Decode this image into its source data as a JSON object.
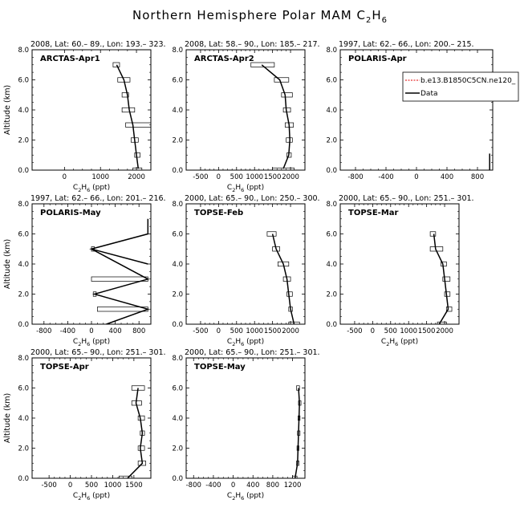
{
  "figure": {
    "title_main": "Northern Hemisphere Polar MAM C",
    "title_sub": "2",
    "title_mid": "H",
    "title_sub2": "6"
  },
  "chart_data": [
    {
      "type": "line",
      "header": "2008, Lat:  60.– 89., Lon: 193.– 323.",
      "label": "ARCTAS-Apr1",
      "xlabel_main": "C",
      "xlabel_sub1": "2",
      "xlabel_mid": "H",
      "xlabel_sub2": "6",
      "xlabel_tail": " (ppt)",
      "ylabel": "Altitude (km)",
      "xlim": [
        -900,
        2400
      ],
      "ylim": [
        0,
        8
      ],
      "xticks": [
        {
          "v": 0,
          "t": "0"
        },
        {
          "v": 1000,
          "t": "1000"
        },
        {
          "v": 2000,
          "t": "2000"
        }
      ],
      "yticks": [
        {
          "v": 0,
          "t": "0.0"
        },
        {
          "v": 2,
          "t": "2.0"
        },
        {
          "v": 4,
          "t": "4.0"
        },
        {
          "v": 6,
          "t": "6.0"
        },
        {
          "v": 8,
          "t": "8.0"
        }
      ],
      "series": [
        {
          "x": [
            2050,
            2000,
            1950,
            1900,
            1800,
            1750,
            1650,
            1450
          ],
          "y": [
            0.1,
            1.0,
            2.0,
            3.0,
            4.0,
            5.0,
            6.0,
            7.0
          ]
        }
      ],
      "boxes": [
        {
          "y": 7.0,
          "x1": 1350,
          "x2": 1530
        },
        {
          "y": 6.0,
          "x1": 1480,
          "x2": 1820
        },
        {
          "y": 5.0,
          "x1": 1600,
          "x2": 1780
        },
        {
          "y": 4.0,
          "x1": 1600,
          "x2": 1950
        },
        {
          "y": 3.0,
          "x1": 1700,
          "x2": 2450
        },
        {
          "y": 2.0,
          "x1": 1850,
          "x2": 2050
        },
        {
          "y": 1.0,
          "x1": 1950,
          "x2": 2100
        },
        {
          "y": 0.0,
          "x1": 1900,
          "x2": 2150
        }
      ]
    },
    {
      "type": "line",
      "header": "2008, Lat:  58.– 90., Lon: 185.– 217.",
      "label": "ARCTAS-Apr2",
      "xlabel_main": "C",
      "xlabel_sub1": "2",
      "xlabel_mid": "H",
      "xlabel_sub2": "6",
      "xlabel_tail": " (ppt)",
      "ylabel": "",
      "xlim": [
        -900,
        2400
      ],
      "ylim": [
        0,
        8
      ],
      "xticks": [
        {
          "v": -500,
          "t": "-500"
        },
        {
          "v": 0,
          "t": "0"
        },
        {
          "v": 500,
          "t": "500"
        },
        {
          "v": 1000,
          "t": "1000"
        },
        {
          "v": 1500,
          "t": "1500"
        },
        {
          "v": 2000,
          "t": "2000"
        }
      ],
      "yticks": [
        {
          "v": 0,
          "t": "0.0"
        },
        {
          "v": 2,
          "t": "2.0"
        },
        {
          "v": 4,
          "t": "4.0"
        },
        {
          "v": 6,
          "t": "6.0"
        },
        {
          "v": 8,
          "t": "8.0"
        }
      ],
      "series": [
        {
          "x": [
            1800,
            1950,
            1980,
            1960,
            1880,
            1850,
            1700,
            1200
          ],
          "y": [
            0.1,
            1.0,
            2.0,
            3.0,
            4.0,
            5.0,
            6.0,
            7.0
          ]
        }
      ],
      "boxes": [
        {
          "y": 7.0,
          "x1": 900,
          "x2": 1550
        },
        {
          "y": 6.0,
          "x1": 1550,
          "x2": 1950
        },
        {
          "y": 5.0,
          "x1": 1750,
          "x2": 2050
        },
        {
          "y": 4.0,
          "x1": 1800,
          "x2": 2000
        },
        {
          "y": 3.0,
          "x1": 1850,
          "x2": 2080
        },
        {
          "y": 2.0,
          "x1": 1880,
          "x2": 2050
        },
        {
          "y": 1.0,
          "x1": 1900,
          "x2": 2020
        },
        {
          "y": 0.0,
          "x1": 1500,
          "x2": 2100
        }
      ]
    },
    {
      "type": "line",
      "header": "1997, Lat: 62.– 66., Lon: 200.– 215.",
      "label": "POLARIS-Apr",
      "xlabel_main": "",
      "xlabel_sub1": "",
      "xlabel_mid": "",
      "xlabel_sub2": "",
      "xlabel_tail": "",
      "ylabel": "",
      "xlim": [
        -1000,
        1000
      ],
      "ylim": [
        0,
        8
      ],
      "xticks": [
        {
          "v": -800,
          "t": "-800"
        },
        {
          "v": -400,
          "t": "-400"
        },
        {
          "v": 0,
          "t": "0"
        },
        {
          "v": 400,
          "t": "400"
        },
        {
          "v": 800,
          "t": "800"
        }
      ],
      "yticks": [
        {
          "v": 0,
          "t": "0.0"
        },
        {
          "v": 2,
          "t": "2.0"
        },
        {
          "v": 4,
          "t": "4.0"
        },
        {
          "v": 6,
          "t": "6.0"
        },
        {
          "v": 8,
          "t": "8.0"
        }
      ],
      "series": [
        {
          "x": [
            960,
            960
          ],
          "y": [
            0.0,
            1.1
          ]
        }
      ],
      "boxes": [],
      "legend": {
        "placement": "top-right",
        "entries": [
          {
            "name": "b.e13.B1850C5CN.ne120_",
            "color": "#e00000",
            "style": "dashed"
          },
          {
            "name": "Data",
            "color": "#000000",
            "style": "solid"
          }
        ]
      }
    },
    {
      "type": "line",
      "header": "1997, Lat: 62.– 66., Lon: 201.– 216.",
      "label": "POLARIS-May",
      "xlabel_main": "C",
      "xlabel_sub1": "2",
      "xlabel_mid": "H",
      "xlabel_sub2": "6",
      "xlabel_tail": " (ppt)",
      "ylabel": "Altitude (km)",
      "xlim": [
        -1000,
        1000
      ],
      "ylim": [
        0,
        8
      ],
      "xticks": [
        {
          "v": -800,
          "t": "-800"
        },
        {
          "v": -400,
          "t": "-400"
        },
        {
          "v": 0,
          "t": "0"
        },
        {
          "v": 400,
          "t": "400"
        },
        {
          "v": 800,
          "t": "800"
        }
      ],
      "yticks": [
        {
          "v": 0,
          "t": "0.0"
        },
        {
          "v": 2,
          "t": "2.0"
        },
        {
          "v": 4,
          "t": "4.0"
        },
        {
          "v": 6,
          "t": "6.0"
        },
        {
          "v": 8,
          "t": "8.0"
        }
      ],
      "series": [
        {
          "x": [
            250,
            950,
            50,
            950,
            0,
            950,
            0,
            950,
            950
          ],
          "y": [
            0.0,
            1.0,
            2.0,
            3.0,
            5.0,
            4.0,
            5.0,
            6.0,
            7.0
          ]
        }
      ],
      "boxes": [
        {
          "y": 5.0,
          "x1": 0,
          "x2": 50
        },
        {
          "y": 3.0,
          "x1": 0,
          "x2": 950
        },
        {
          "y": 2.0,
          "x1": 30,
          "x2": 80
        },
        {
          "y": 1.0,
          "x1": 100,
          "x2": 950
        }
      ]
    },
    {
      "type": "line",
      "header": "2000, Lat: 65.– 90., Lon: 250.– 300.",
      "label": "TOPSE-Feb",
      "xlabel_main": "C",
      "xlabel_sub1": "2",
      "xlabel_mid": "H",
      "xlabel_sub2": "6",
      "xlabel_tail": " (ppt)",
      "ylabel": "",
      "xlim": [
        -900,
        2400
      ],
      "ylim": [
        0,
        8
      ],
      "xticks": [
        {
          "v": -500,
          "t": "-500"
        },
        {
          "v": 0,
          "t": "0"
        },
        {
          "v": 500,
          "t": "500"
        },
        {
          "v": 1000,
          "t": "1000"
        },
        {
          "v": 1500,
          "t": "1500"
        },
        {
          "v": 2000,
          "t": "2000"
        }
      ],
      "yticks": [
        {
          "v": 0,
          "t": "0.0"
        },
        {
          "v": 2,
          "t": "2.0"
        },
        {
          "v": 4,
          "t": "4.0"
        },
        {
          "v": 6,
          "t": "6.0"
        },
        {
          "v": 8,
          "t": "8.0"
        }
      ],
      "series": [
        {
          "x": [
            2100,
            2000,
            1950,
            1900,
            1800,
            1600,
            1500
          ],
          "y": [
            0.0,
            1.0,
            2.0,
            3.0,
            4.0,
            5.0,
            6.0
          ]
        }
      ],
      "boxes": [
        {
          "y": 6.0,
          "x1": 1350,
          "x2": 1600
        },
        {
          "y": 5.0,
          "x1": 1500,
          "x2": 1700
        },
        {
          "y": 4.0,
          "x1": 1650,
          "x2": 1950
        },
        {
          "y": 3.0,
          "x1": 1800,
          "x2": 2000
        },
        {
          "y": 2.0,
          "x1": 1900,
          "x2": 2050
        },
        {
          "y": 1.0,
          "x1": 1950,
          "x2": 2050
        },
        {
          "y": 0.0,
          "x1": 1950,
          "x2": 2250
        }
      ]
    },
    {
      "type": "line",
      "header": "2000, Lat: 65.– 90., Lon: 251.– 301.",
      "label": "TOPSE-Mar",
      "xlabel_main": "C",
      "xlabel_sub1": "2",
      "xlabel_mid": "H",
      "xlabel_sub2": "6",
      "xlabel_tail": " (ppt)",
      "ylabel": "",
      "xlim": [
        -900,
        2400
      ],
      "ylim": [
        0,
        8
      ],
      "xticks": [
        {
          "v": -500,
          "t": "-500"
        },
        {
          "v": 0,
          "t": "0"
        },
        {
          "v": 500,
          "t": "500"
        },
        {
          "v": 1000,
          "t": "1000"
        },
        {
          "v": 1500,
          "t": "1500"
        },
        {
          "v": 2000,
          "t": "2000"
        }
      ],
      "yticks": [
        {
          "v": 0,
          "t": "0.0"
        },
        {
          "v": 2,
          "t": "2.0"
        },
        {
          "v": 4,
          "t": "4.0"
        },
        {
          "v": 6,
          "t": "6.0"
        },
        {
          "v": 8,
          "t": "8.0"
        }
      ],
      "series": [
        {
          "x": [
            1850,
            2100,
            2050,
            2000,
            1950,
            1750,
            1700
          ],
          "y": [
            0.0,
            1.0,
            2.0,
            3.0,
            4.0,
            5.0,
            6.0
          ]
        }
      ],
      "boxes": [
        {
          "y": 6.0,
          "x1": 1600,
          "x2": 1750
        },
        {
          "y": 5.0,
          "x1": 1600,
          "x2": 1950
        },
        {
          "y": 4.0,
          "x1": 1900,
          "x2": 2050
        },
        {
          "y": 3.0,
          "x1": 1950,
          "x2": 2150
        },
        {
          "y": 2.0,
          "x1": 2000,
          "x2": 2150
        },
        {
          "y": 1.0,
          "x1": 2050,
          "x2": 2200
        },
        {
          "y": 0.0,
          "x1": 1800,
          "x2": 2050
        }
      ]
    },
    {
      "type": "line",
      "header": "2000, Lat: 65.– 90., Lon: 251.– 301.",
      "label": "TOPSE-Apr",
      "xlabel_main": "C",
      "xlabel_sub1": "2",
      "xlabel_mid": "H",
      "xlabel_sub2": "6",
      "xlabel_tail": " (ppt)",
      "ylabel": "Altitude (km)",
      "xlim": [
        -900,
        1900
      ],
      "ylim": [
        0,
        8
      ],
      "xticks": [
        {
          "v": -500,
          "t": "-500"
        },
        {
          "v": 0,
          "t": "0"
        },
        {
          "v": 500,
          "t": "500"
        },
        {
          "v": 1000,
          "t": "1000"
        },
        {
          "v": 1500,
          "t": "1500"
        }
      ],
      "yticks": [
        {
          "v": 0,
          "t": "0.0"
        },
        {
          "v": 2,
          "t": "2.0"
        },
        {
          "v": 4,
          "t": "4.0"
        },
        {
          "v": 6,
          "t": "6.0"
        },
        {
          "v": 8,
          "t": "8.0"
        }
      ],
      "series": [
        {
          "x": [
            1350,
            1700,
            1650,
            1700,
            1650,
            1550,
            1600
          ],
          "y": [
            0.0,
            1.0,
            2.0,
            3.0,
            4.0,
            5.0,
            6.0
          ]
        }
      ],
      "boxes": [
        {
          "y": 6.0,
          "x1": 1450,
          "x2": 1750
        },
        {
          "y": 5.0,
          "x1": 1450,
          "x2": 1680
        },
        {
          "y": 4.0,
          "x1": 1600,
          "x2": 1750
        },
        {
          "y": 3.0,
          "x1": 1650,
          "x2": 1750
        },
        {
          "y": 2.0,
          "x1": 1600,
          "x2": 1750
        },
        {
          "y": 1.0,
          "x1": 1600,
          "x2": 1780
        },
        {
          "y": 0.0,
          "x1": 1150,
          "x2": 1450
        }
      ]
    },
    {
      "type": "line",
      "header": "2000, Lat: 65.– 90., Lon: 251.– 301.",
      "label": "TOPSE-May",
      "xlabel_main": "C",
      "xlabel_sub1": "2",
      "xlabel_mid": "H",
      "xlabel_sub2": "6",
      "xlabel_tail": " (ppt)",
      "ylabel": "",
      "xlim": [
        -950,
        1450
      ],
      "ylim": [
        0,
        8
      ],
      "xticks": [
        {
          "v": -800,
          "t": "-800"
        },
        {
          "v": -400,
          "t": "-400"
        },
        {
          "v": 0,
          "t": "0"
        },
        {
          "v": 400,
          "t": "400"
        },
        {
          "v": 800,
          "t": "800"
        },
        {
          "v": 1200,
          "t": "1200"
        }
      ],
      "yticks": [
        {
          "v": 0,
          "t": "0.0"
        },
        {
          "v": 2,
          "t": "2.0"
        },
        {
          "v": 4,
          "t": "4.0"
        },
        {
          "v": 6,
          "t": "6.0"
        },
        {
          "v": 8,
          "t": "8.0"
        }
      ],
      "series": [
        {
          "x": [
            1250,
            1300,
            1310,
            1320,
            1330,
            1340,
            1320
          ],
          "y": [
            0.0,
            1.0,
            2.0,
            3.0,
            4.0,
            5.0,
            6.0
          ]
        }
      ],
      "boxes": [
        {
          "y": 6.0,
          "x1": 1280,
          "x2": 1340
        },
        {
          "y": 5.0,
          "x1": 1320,
          "x2": 1370
        },
        {
          "y": 4.0,
          "x1": 1310,
          "x2": 1350
        },
        {
          "y": 3.0,
          "x1": 1300,
          "x2": 1350
        },
        {
          "y": 2.0,
          "x1": 1290,
          "x2": 1330
        },
        {
          "y": 1.0,
          "x1": 1280,
          "x2": 1330
        },
        {
          "y": 0.0,
          "x1": 1200,
          "x2": 1290
        }
      ]
    }
  ]
}
